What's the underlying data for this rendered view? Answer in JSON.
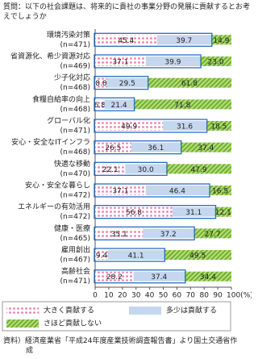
{
  "chart_data": {
    "type": "stacked-bar-horizontal",
    "title": "質問：以下の社会課題は、将来的に貴社の事業分野の発展に貢献するとお考えでしょうか",
    "categories": [
      "環境汚染対策",
      "省資源化、希少資源対応",
      "少子化対応",
      "食糧自給率の向上",
      "グローバル化",
      "安心・安全なITインフラ",
      "快適な移動",
      "安心・安全な暮らし",
      "エネルギーの有効活用",
      "健康・医療",
      "雇用創出",
      "高齢社会"
    ],
    "sample_sizes": [
      "(n=471)",
      "(n=469)",
      "(n=468)",
      "(n=468)",
      "(n=471)",
      "(n=468)",
      "(n=470)",
      "(n=472)",
      "(n=472)",
      "(n=465)",
      "(n=467)",
      "(n=471)"
    ],
    "series": [
      {
        "name": "大きく貢献する",
        "color": "#f4a6c8",
        "values": [
          45.4,
          37.1,
          8.8,
          6.8,
          49.9,
          26.5,
          22.1,
          37.1,
          56.8,
          35.1,
          9.4,
          28.2
        ],
        "value_labels": [
          "45.4",
          "37.1",
          "8.8",
          "6.8",
          "49.9",
          "26.5",
          "22.1",
          "37.1",
          "56.8",
          "35.1",
          "9.4",
          "28.2"
        ]
      },
      {
        "name": "多少は貢献する",
        "color": "#c5d7ef",
        "values": [
          39.7,
          39.9,
          29.5,
          21.4,
          31.6,
          36.1,
          30.0,
          46.4,
          31.1,
          37.2,
          41.1,
          37.4
        ],
        "value_labels": [
          "39.7",
          "39.9",
          "29.5",
          "21.4",
          "31.6",
          "36.1",
          "30.0",
          "46.4",
          "31.1",
          "37.2",
          "41.1",
          "37.4"
        ]
      },
      {
        "name": "さほど貢献しない",
        "color": "#8cc63f",
        "values": [
          14.9,
          23.0,
          61.8,
          71.8,
          18.5,
          37.4,
          47.9,
          16.5,
          12.1,
          27.7,
          49.5,
          34.4
        ],
        "value_labels": [
          "14.9",
          "23.0",
          "61.8",
          "71.8",
          "18.5",
          "37.4",
          "47.9",
          "16.5",
          "12.1",
          "27.7",
          "49.5",
          "34.4"
        ]
      }
    ],
    "xlim": [
      0,
      100
    ],
    "xticks": [
      0,
      10,
      20,
      30,
      40,
      50,
      60,
      70,
      80,
      90,
      {
        "value": 100,
        "label": "100(%)"
      }
    ],
    "source": "資料）経済産業省「平成24年度産業技術調査報告書」より国土交通省作成"
  }
}
